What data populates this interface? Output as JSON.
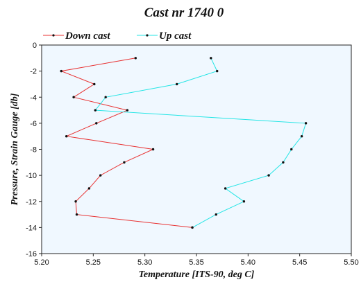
{
  "chart_data": {
    "type": "line",
    "title": "Cast nr 1740 0",
    "xlabel": "Temperature [ITS-90, deg C]",
    "ylabel": "Pressure, Strain Gauge [db]",
    "xlim": [
      5.2,
      5.5
    ],
    "ylim": [
      -16,
      0
    ],
    "xticks": [
      "5.20",
      "5.25",
      "5.30",
      "5.35",
      "5.40",
      "5.45",
      "5.50"
    ],
    "yticks": [
      "0",
      "-2",
      "-4",
      "-6",
      "-8",
      "-10",
      "-12",
      "-14",
      "-16"
    ],
    "xtick_values": [
      5.2,
      5.25,
      5.3,
      5.35,
      5.4,
      5.45,
      5.5
    ],
    "ytick_values": [
      0,
      -2,
      -4,
      -6,
      -8,
      -10,
      -12,
      -14,
      -16
    ],
    "legend_position": "top-left",
    "grid": false,
    "plot_background": "#f0f8ff",
    "series": [
      {
        "name": "Down cast",
        "color": "#e83030",
        "x": [
          5.291,
          5.219,
          5.251,
          5.231,
          5.283,
          5.253,
          5.224,
          5.308,
          5.28,
          5.257,
          5.246,
          5.233,
          5.234,
          5.346
        ],
        "y": [
          -1.0,
          -2.0,
          -3.0,
          -4.0,
          -5.0,
          -6.0,
          -7.0,
          -8.0,
          -9.0,
          -10.0,
          -11.0,
          -12.0,
          -13.0,
          -14.0
        ]
      },
      {
        "name": "Up cast",
        "color": "#22e5e5",
        "x": [
          5.364,
          5.37,
          5.331,
          5.262,
          5.252,
          5.456,
          5.452,
          5.442,
          5.434,
          5.42,
          5.378,
          5.396,
          5.369,
          5.346
        ],
        "y": [
          -1.0,
          -2.0,
          -3.0,
          -4.0,
          -5.0,
          -6.0,
          -7.0,
          -8.0,
          -9.0,
          -10.0,
          -11.0,
          -12.0,
          -13.0,
          -14.0
        ]
      }
    ]
  }
}
